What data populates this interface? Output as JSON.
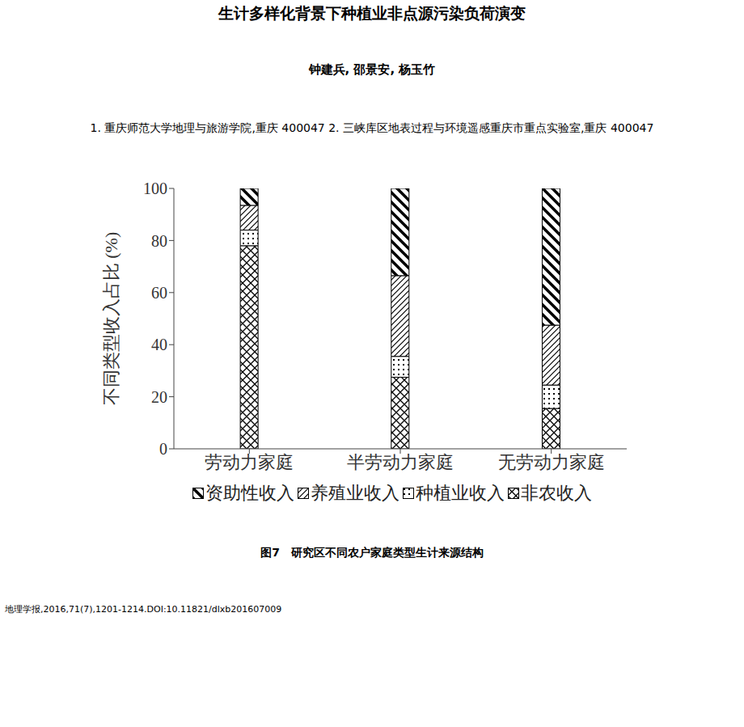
{
  "header": {
    "title": "生计多样化背景下种植业非点源污染负荷演变",
    "authors": "钟建兵, 邵景安, 杨玉竹",
    "affiliations": "1. 重庆师范大学地理与旅游学院,重庆 400047 2. 三峡库区地表过程与环境遥感重庆市重点实验室,重庆 400047"
  },
  "chart_data": {
    "type": "bar",
    "stacked": true,
    "y_label": "不同类型收入占比 (%)",
    "categories": [
      "劳动力家庭",
      "半劳动力家庭",
      "无劳动力家庭"
    ],
    "series": [
      {
        "name": "资助性收入",
        "color": "#000000",
        "values": [
          6.5,
          33.5,
          52.5
        ]
      },
      {
        "name": "养殖业收入",
        "color": "#000000",
        "values": [
          9.5,
          31,
          23
        ]
      },
      {
        "name": "种植业收入",
        "color": "#000000",
        "values": [
          6,
          8,
          9
        ]
      },
      {
        "name": "非农收入",
        "color": "#000000",
        "values": [
          78,
          27.5,
          15.5
        ]
      }
    ],
    "ylim": [
      0,
      100
    ],
    "yticks": [
      0,
      20,
      40,
      60,
      80,
      100
    ],
    "grid": false,
    "legend": "bottom"
  },
  "caption": "图7　研究区不同农户家庭类型生计来源结构",
  "citation": "地理学报,2016,71(7),1201-1214.DOI:10.11821/dlxb201607009"
}
